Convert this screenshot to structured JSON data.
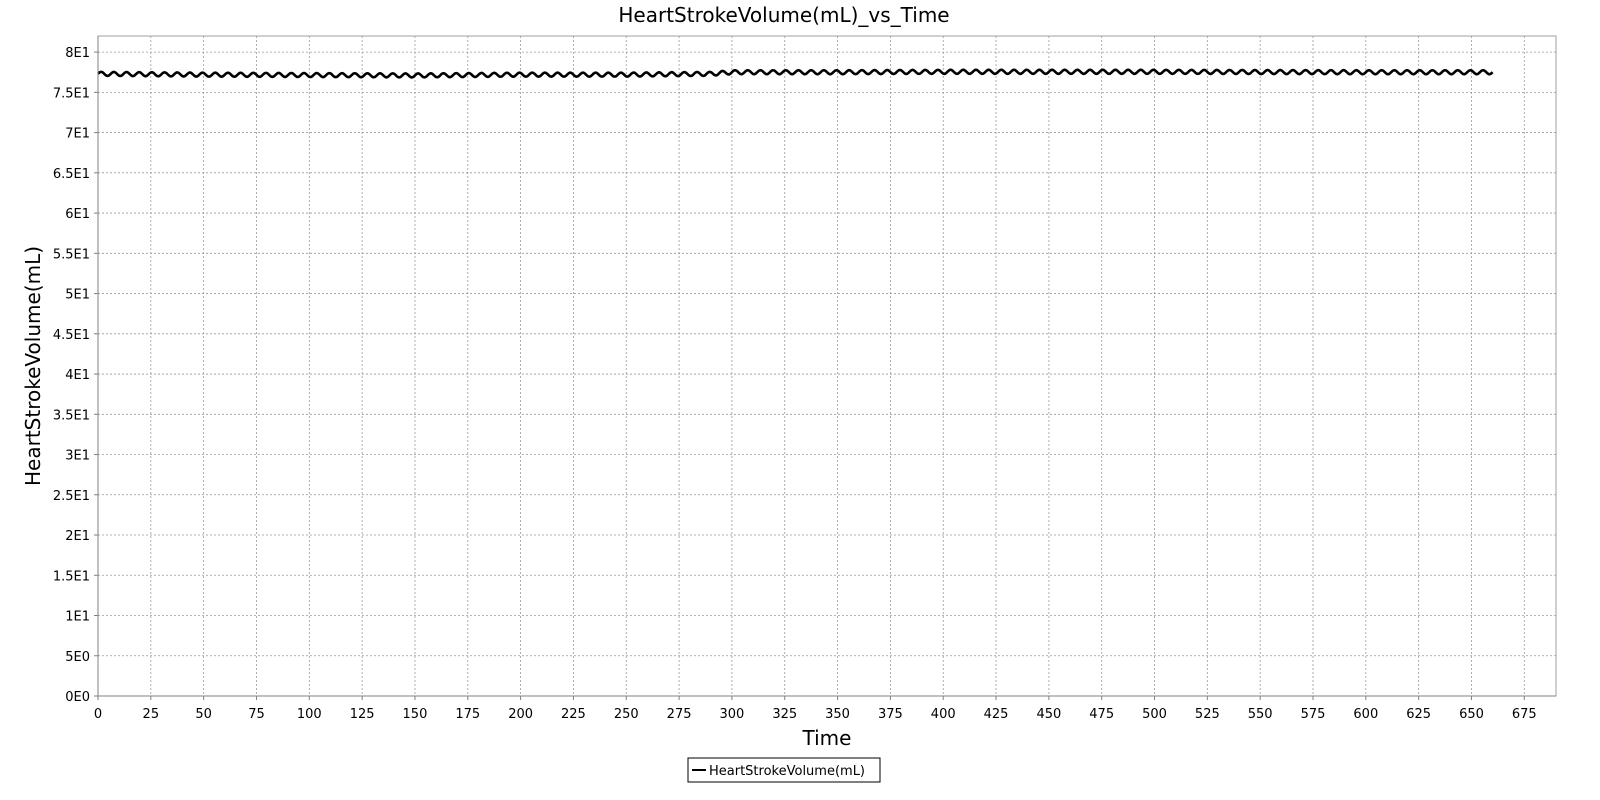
{
  "chart_data": {
    "type": "line",
    "title": "HeartStrokeVolume(mL)_vs_Time",
    "xlabel": "Time",
    "ylabel": "HeartStrokeVolume(mL)",
    "xlim": [
      0,
      690
    ],
    "ylim": [
      0,
      82
    ],
    "x_ticks": [
      0,
      25,
      50,
      75,
      100,
      125,
      150,
      175,
      200,
      225,
      250,
      275,
      300,
      325,
      350,
      375,
      400,
      425,
      450,
      475,
      500,
      525,
      550,
      575,
      600,
      625,
      650,
      675
    ],
    "x_tick_labels": [
      "0",
      "25",
      "50",
      "75",
      "100",
      "125",
      "150",
      "175",
      "200",
      "225",
      "250",
      "275",
      "300",
      "325",
      "350",
      "375",
      "400",
      "425",
      "450",
      "475",
      "500",
      "525",
      "550",
      "575",
      "600",
      "625",
      "650",
      "675"
    ],
    "y_ticks": [
      0,
      5,
      10,
      15,
      20,
      25,
      30,
      35,
      40,
      45,
      50,
      55,
      60,
      65,
      70,
      75,
      80
    ],
    "y_tick_labels": [
      "0E0",
      "5E0",
      "1E1",
      "1.5E1",
      "2E1",
      "2.5E1",
      "3E1",
      "3.5E1",
      "4E1",
      "4.5E1",
      "5E1",
      "5.5E1",
      "6E1",
      "6.5E1",
      "7E1",
      "7.5E1",
      "8E1"
    ],
    "grid": true,
    "legend_position": "bottom-center",
    "series": [
      {
        "name": "HeartStrokeVolume(mL)",
        "color": "#000000",
        "x_start": 0,
        "x_end": 660,
        "baseline": [
          [
            0,
            77.3
          ],
          [
            50,
            77.2
          ],
          [
            100,
            77.15
          ],
          [
            150,
            77.1
          ],
          [
            200,
            77.2
          ],
          [
            250,
            77.2
          ],
          [
            290,
            77.3
          ],
          [
            300,
            77.5
          ],
          [
            350,
            77.5
          ],
          [
            400,
            77.55
          ],
          [
            500,
            77.55
          ],
          [
            600,
            77.5
          ],
          [
            660,
            77.5
          ]
        ],
        "oscillation_amplitude": 0.25,
        "oscillation_period": 6
      }
    ]
  }
}
